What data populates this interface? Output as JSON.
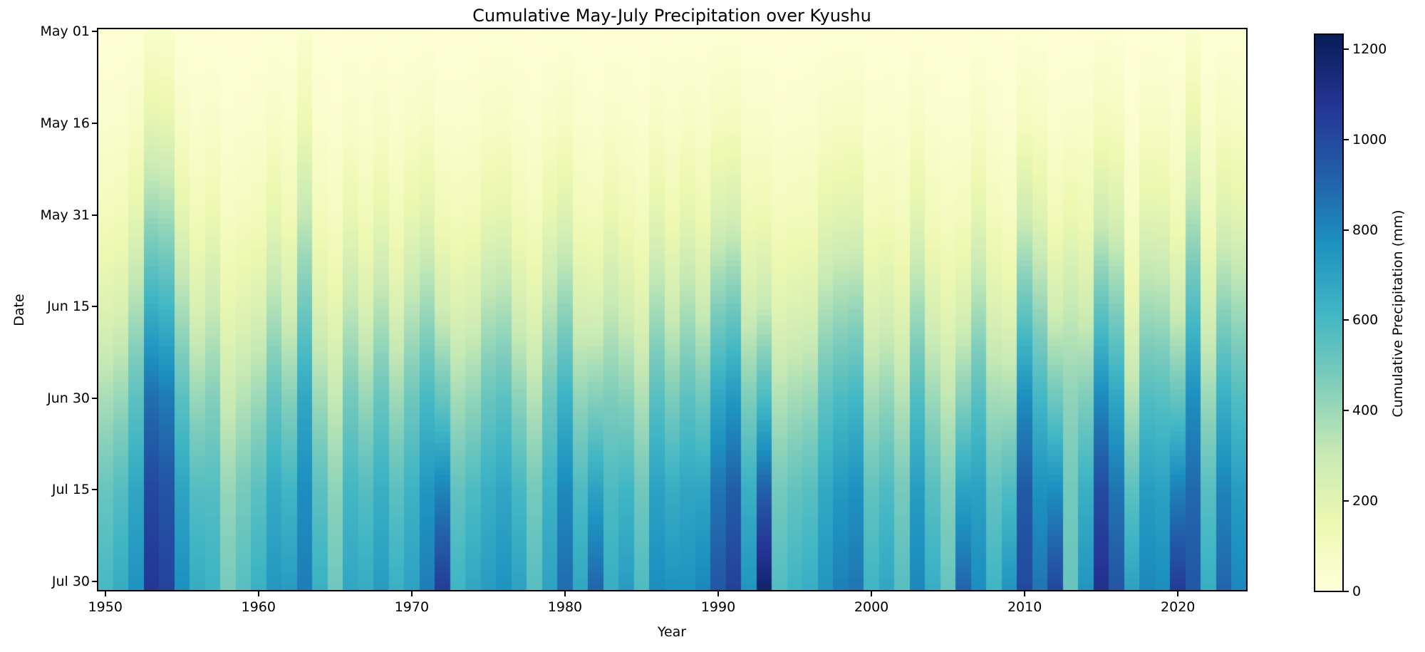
{
  "title": "Cumulative May-July Precipitation over Kyushu",
  "axes": {
    "xlabel": "Year",
    "ylabel": "Date"
  },
  "x_ticks": [
    1950,
    1960,
    1970,
    1980,
    1990,
    2000,
    2010,
    2020
  ],
  "y_ticks": [
    {
      "label": "May 01",
      "day": 0
    },
    {
      "label": "May 16",
      "day": 15
    },
    {
      "label": "May 31",
      "day": 30
    },
    {
      "label": "Jun 15",
      "day": 45
    },
    {
      "label": "Jun 30",
      "day": 60
    },
    {
      "label": "Jul 15",
      "day": 75
    },
    {
      "label": "Jul 30",
      "day": 90
    }
  ],
  "colorbar": {
    "label": "Cumulative Precipitation (mm)",
    "ticks": [
      0,
      200,
      400,
      600,
      800,
      1000,
      1200
    ],
    "vmin": 0,
    "vmax": 1233
  },
  "chart_data": {
    "type": "heatmap",
    "title": "Cumulative May-July Precipitation over Kyushu",
    "xlabel": "Year",
    "ylabel": "Date",
    "colorbar_label": "Cumulative Precipitation (mm)",
    "x_range": [
      1950,
      2024
    ],
    "y_range_days": [
      "May 01",
      "Jul 31"
    ],
    "n_day_rows": 92,
    "grid": false,
    "colormap": "YlGnBu",
    "colormap_stops": {
      "positions": [
        0,
        0.125,
        0.25,
        0.375,
        0.5,
        0.625,
        0.75,
        0.875,
        1.0
      ],
      "colors": [
        "#ffffd9",
        "#edf8b1",
        "#c7e9b4",
        "#7fcdbb",
        "#41b6c4",
        "#1d91c0",
        "#225ea8",
        "#253494",
        "#081d58"
      ]
    },
    "vmin": 0,
    "vmax": 1233,
    "checkpoint_days": [
      0,
      15,
      30,
      45,
      60,
      75,
      91
    ],
    "checkpoint_labels": [
      "May 01",
      "May 16",
      "May 31",
      "Jun 15",
      "Jun 30",
      "Jul 15",
      "Jul 31"
    ],
    "series": [
      {
        "year": 1950,
        "cumulative_mm": [
          12,
          48,
          108,
          216,
          372,
          516,
          600
        ]
      },
      {
        "year": 1951,
        "cumulative_mm": [
          13,
          53,
          119,
          238,
          409,
          568,
          660
        ]
      },
      {
        "year": 1952,
        "cumulative_mm": [
          15,
          76,
          190,
          365,
          547,
          684,
          760
        ]
      },
      {
        "year": 1953,
        "cumulative_mm": [
          54,
          193,
          407,
          642,
          877,
          1006,
          1070
        ]
      },
      {
        "year": 1954,
        "cumulative_mm": [
          51,
          184,
          388,
          612,
          836,
          959,
          1020
        ]
      },
      {
        "year": 1955,
        "cumulative_mm": [
          15,
          77,
          193,
          370,
          554,
          693,
          770
        ]
      },
      {
        "year": 1956,
        "cumulative_mm": [
          13,
          53,
          119,
          238,
          409,
          568,
          660
        ]
      },
      {
        "year": 1957,
        "cumulative_mm": [
          13,
          63,
          158,
          302,
          454,
          567,
          630
        ]
      },
      {
        "year": 1958,
        "cumulative_mm": [
          10,
          38,
          86,
          173,
          298,
          413,
          480
        ]
      },
      {
        "year": 1959,
        "cumulative_mm": [
          11,
          45,
          101,
          202,
          347,
          482,
          560
        ]
      },
      {
        "year": 1960,
        "cumulative_mm": [
          13,
          51,
          115,
          230,
          397,
          550,
          640
        ]
      },
      {
        "year": 1961,
        "cumulative_mm": [
          15,
          74,
          185,
          355,
          533,
          666,
          740
        ]
      },
      {
        "year": 1962,
        "cumulative_mm": [
          14,
          58,
          130,
          259,
          446,
          619,
          720
        ]
      },
      {
        "year": 1963,
        "cumulative_mm": [
          42,
          149,
          315,
          498,
          681,
          780,
          830
        ]
      },
      {
        "year": 1964,
        "cumulative_mm": [
          13,
          51,
          115,
          230,
          397,
          550,
          640
        ]
      },
      {
        "year": 1965,
        "cumulative_mm": [
          10,
          40,
          90,
          180,
          310,
          430,
          500
        ]
      },
      {
        "year": 1966,
        "cumulative_mm": [
          14,
          68,
          170,
          326,
          490,
          612,
          680
        ]
      },
      {
        "year": 1967,
        "cumulative_mm": [
          13,
          53,
          119,
          238,
          409,
          568,
          660
        ]
      },
      {
        "year": 1968,
        "cumulative_mm": [
          14,
          72,
          180,
          346,
          518,
          648,
          720
        ]
      },
      {
        "year": 1969,
        "cumulative_mm": [
          13,
          51,
          115,
          230,
          397,
          550,
          640
        ]
      },
      {
        "year": 1970,
        "cumulative_mm": [
          14,
          70,
          175,
          336,
          504,
          630,
          700
        ]
      },
      {
        "year": 1971,
        "cumulative_mm": [
          17,
          83,
          208,
          398,
          598,
          747,
          830
        ]
      },
      {
        "year": 1972,
        "cumulative_mm": [
          10,
          52,
          125,
          270,
          520,
          811,
          1040
        ]
      },
      {
        "year": 1973,
        "cumulative_mm": [
          12,
          50,
          112,
          223,
          384,
          533,
          620
        ]
      },
      {
        "year": 1974,
        "cumulative_mm": [
          14,
          54,
          122,
          245,
          422,
          585,
          680
        ]
      },
      {
        "year": 1975,
        "cumulative_mm": [
          14,
          72,
          180,
          346,
          518,
          648,
          720
        ]
      },
      {
        "year": 1976,
        "cumulative_mm": [
          15,
          76,
          190,
          365,
          547,
          684,
          760
        ]
      },
      {
        "year": 1977,
        "cumulative_mm": [
          14,
          56,
          126,
          252,
          434,
          602,
          700
        ]
      },
      {
        "year": 1978,
        "cumulative_mm": [
          11,
          45,
          101,
          202,
          347,
          482,
          560
        ]
      },
      {
        "year": 1979,
        "cumulative_mm": [
          14,
          70,
          175,
          336,
          504,
          630,
          700
        ]
      },
      {
        "year": 1980,
        "cumulative_mm": [
          18,
          88,
          220,
          422,
          634,
          792,
          880
        ]
      },
      {
        "year": 1981,
        "cumulative_mm": [
          14,
          54,
          122,
          245,
          422,
          585,
          680
        ]
      },
      {
        "year": 1982,
        "cumulative_mm": [
          9,
          45,
          108,
          234,
          450,
          702,
          900
        ]
      },
      {
        "year": 1983,
        "cumulative_mm": [
          13,
          65,
          163,
          312,
          468,
          585,
          650
        ]
      },
      {
        "year": 1984,
        "cumulative_mm": [
          14,
          58,
          130,
          259,
          446,
          619,
          720
        ]
      },
      {
        "year": 1985,
        "cumulative_mm": [
          12,
          46,
          104,
          209,
          360,
          499,
          580
        ]
      },
      {
        "year": 1986,
        "cumulative_mm": [
          16,
          78,
          195,
          374,
          562,
          702,
          780
        ]
      },
      {
        "year": 1987,
        "cumulative_mm": [
          15,
          61,
          137,
          274,
          471,
          654,
          760
        ]
      },
      {
        "year": 1988,
        "cumulative_mm": [
          15,
          76,
          190,
          365,
          547,
          684,
          760
        ]
      },
      {
        "year": 1989,
        "cumulative_mm": [
          16,
          64,
          144,
          288,
          496,
          688,
          800
        ]
      },
      {
        "year": 1990,
        "cumulative_mm": [
          19,
          95,
          238,
          456,
          684,
          855,
          950
        ]
      },
      {
        "year": 1991,
        "cumulative_mm": [
          21,
          103,
          258,
          494,
          742,
          927,
          1030
        ]
      },
      {
        "year": 1992,
        "cumulative_mm": [
          15,
          60,
          135,
          270,
          465,
          645,
          750
        ]
      },
      {
        "year": 1993,
        "cumulative_mm": [
          12,
          59,
          142,
          307,
          590,
          920,
          1180
        ]
      },
      {
        "year": 1994,
        "cumulative_mm": [
          11,
          46,
          103,
          205,
          353,
          490,
          570
        ]
      },
      {
        "year": 1995,
        "cumulative_mm": [
          12,
          50,
          112,
          223,
          384,
          533,
          620
        ]
      },
      {
        "year": 1996,
        "cumulative_mm": [
          13,
          52,
          117,
          234,
          403,
          559,
          650
        ]
      },
      {
        "year": 1997,
        "cumulative_mm": [
          15,
          75,
          188,
          360,
          540,
          675,
          750
        ]
      },
      {
        "year": 1998,
        "cumulative_mm": [
          16,
          82,
          205,
          394,
          590,
          738,
          820
        ]
      },
      {
        "year": 1999,
        "cumulative_mm": [
          17,
          85,
          213,
          408,
          612,
          765,
          850
        ]
      },
      {
        "year": 2000,
        "cumulative_mm": [
          12,
          50,
          112,
          223,
          384,
          533,
          620
        ]
      },
      {
        "year": 2001,
        "cumulative_mm": [
          14,
          54,
          122,
          245,
          422,
          585,
          680
        ]
      },
      {
        "year": 2002,
        "cumulative_mm": [
          11,
          45,
          101,
          202,
          347,
          482,
          560
        ]
      },
      {
        "year": 2003,
        "cumulative_mm": [
          16,
          80,
          200,
          384,
          576,
          720,
          800
        ]
      },
      {
        "year": 2004,
        "cumulative_mm": [
          13,
          52,
          117,
          234,
          403,
          559,
          650
        ]
      },
      {
        "year": 2005,
        "cumulative_mm": [
          10,
          42,
          94,
          187,
          322,
          447,
          520
        ]
      },
      {
        "year": 2006,
        "cumulative_mm": [
          9,
          45,
          108,
          234,
          450,
          702,
          900
        ]
      },
      {
        "year": 2007,
        "cumulative_mm": [
          16,
          78,
          195,
          374,
          562,
          702,
          780
        ]
      },
      {
        "year": 2008,
        "cumulative_mm": [
          12,
          50,
          112,
          223,
          384,
          533,
          620
        ]
      },
      {
        "year": 2009,
        "cumulative_mm": [
          8,
          38,
          90,
          195,
          375,
          585,
          750
        ]
      },
      {
        "year": 2010,
        "cumulative_mm": [
          20,
          100,
          280,
          520,
          780,
          940,
          1000
        ]
      },
      {
        "year": 2011,
        "cumulative_mm": [
          17,
          85,
          213,
          408,
          612,
          765,
          850
        ]
      },
      {
        "year": 2012,
        "cumulative_mm": [
          10,
          50,
          120,
          260,
          500,
          780,
          1000
        ]
      },
      {
        "year": 2013,
        "cumulative_mm": [
          10,
          60,
          160,
          310,
          430,
          490,
          520
        ]
      },
      {
        "year": 2014,
        "cumulative_mm": [
          15,
          60,
          135,
          270,
          465,
          645,
          750
        ]
      },
      {
        "year": 2015,
        "cumulative_mm": [
          22,
          110,
          275,
          528,
          792,
          990,
          1100
        ]
      },
      {
        "year": 2016,
        "cumulative_mm": [
          19,
          95,
          238,
          456,
          684,
          855,
          950
        ]
      },
      {
        "year": 2017,
        "cumulative_mm": [
          7,
          35,
          84,
          182,
          350,
          546,
          700
        ]
      },
      {
        "year": 2018,
        "cumulative_mm": [
          16,
          80,
          200,
          384,
          576,
          720,
          800
        ]
      },
      {
        "year": 2019,
        "cumulative_mm": [
          16,
          78,
          195,
          374,
          562,
          702,
          780
        ]
      },
      {
        "year": 2020,
        "cumulative_mm": [
          11,
          53,
          126,
          273,
          525,
          819,
          1050
        ]
      },
      {
        "year": 2021,
        "cumulative_mm": [
          48,
          171,
          361,
          570,
          779,
          893,
          950
        ]
      },
      {
        "year": 2022,
        "cumulative_mm": [
          13,
          52,
          117,
          234,
          403,
          559,
          650
        ]
      },
      {
        "year": 2023,
        "cumulative_mm": [
          18,
          90,
          225,
          432,
          648,
          810,
          900
        ]
      },
      {
        "year": 2024,
        "cumulative_mm": [
          16,
          80,
          200,
          384,
          576,
          720,
          800
        ]
      }
    ]
  }
}
